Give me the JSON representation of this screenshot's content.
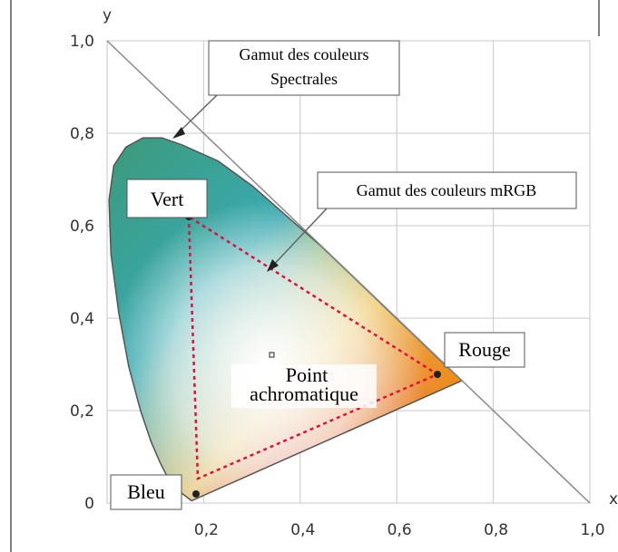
{
  "axes": {
    "x_label": "x",
    "y_label": "y",
    "x_ticks": [
      "0,2",
      "0,4",
      "0,6",
      "0,8",
      "1,0"
    ],
    "y_ticks": [
      "0",
      "0,2",
      "0,4",
      "0,6",
      "0,8",
      "1,0"
    ]
  },
  "annotations": {
    "spectral": [
      "Gamut des couleurs",
      "Spectrales"
    ],
    "mrgb": "Gamut des couleurs mRGB",
    "green": "Vert",
    "red": "Rouge",
    "blue": "Bleu",
    "white_point": [
      "Point",
      "achromatique"
    ]
  }
}
